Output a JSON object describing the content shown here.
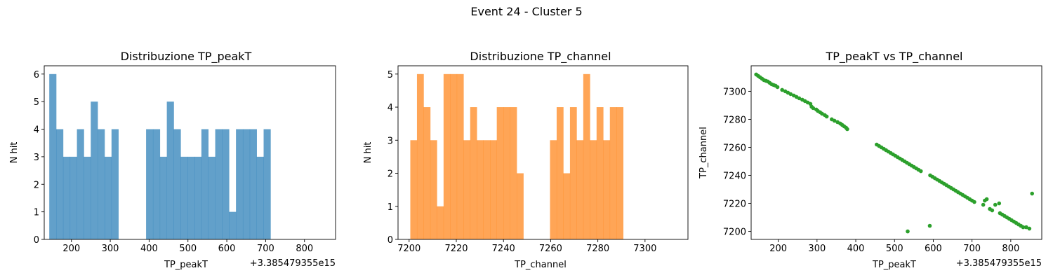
{
  "suptitle": "Event 24 - Cluster 5",
  "colors": {
    "hist1": "#1f77b4",
    "hist2": "#ff7f0e",
    "scatter": "#2ca02c",
    "axis": "#000000"
  },
  "chart_data": [
    {
      "type": "bar",
      "title": "Distribuzione TP_peakT",
      "xlabel": "TP_peakT",
      "ylabel": "N hit",
      "offset_text": "+3.385479355e15",
      "xlim": [
        130,
        880
      ],
      "ylim": [
        0,
        6.3
      ],
      "xticks": [
        200,
        300,
        400,
        500,
        600,
        700,
        800
      ],
      "yticks": [
        0,
        1,
        2,
        3,
        4,
        5,
        6
      ],
      "bin_start": 143,
      "bin_width": 17.8,
      "values": [
        6,
        4,
        3,
        3,
        4,
        3,
        5,
        4,
        3,
        4,
        0,
        0,
        0,
        0,
        4,
        4,
        3,
        5,
        4,
        3,
        3,
        3,
        4,
        3,
        4,
        4,
        1,
        4,
        4,
        4,
        3,
        4
      ]
    },
    {
      "type": "bar",
      "title": "Distribuzione TP_channel",
      "xlabel": "TP_channel",
      "ylabel": "N hit",
      "xlim": [
        7195.3,
        7318.2
      ],
      "ylim": [
        0,
        5.25
      ],
      "xticks": [
        7200,
        7220,
        7240,
        7260,
        7280,
        7300
      ],
      "yticks": [
        0,
        1,
        2,
        3,
        4,
        5
      ],
      "bin_start": 7200.5,
      "bin_width": 2.82,
      "values": [
        3,
        5,
        4,
        3,
        1,
        5,
        5,
        5,
        3,
        4,
        3,
        3,
        3,
        4,
        4,
        4,
        2,
        0,
        0,
        0,
        0,
        3,
        4,
        2,
        4,
        3,
        5,
        3,
        4,
        3,
        4,
        4
      ]
    },
    {
      "type": "scatter",
      "title": "TP_peakT vs TP_channel",
      "xlabel": "TP_peakT",
      "ylabel": "TP_channel",
      "offset_text": "+3.385479355e15",
      "xlim": [
        130,
        880
      ],
      "ylim": [
        7194.3,
        7318.2
      ],
      "xticks": [
        200,
        300,
        400,
        500,
        600,
        700,
        800
      ],
      "yticks": [
        7200,
        7220,
        7240,
        7260,
        7280,
        7300
      ],
      "points": [
        [
          143,
          7312
        ],
        [
          148,
          7311
        ],
        [
          153,
          7310
        ],
        [
          158,
          7309
        ],
        [
          163,
          7308
        ],
        [
          168,
          7307.5
        ],
        [
          173,
          7307
        ],
        [
          178,
          7306
        ],
        [
          183,
          7305
        ],
        [
          188,
          7304.5
        ],
        [
          193,
          7304
        ],
        [
          198,
          7303
        ],
        [
          210,
          7301
        ],
        [
          218,
          7300
        ],
        [
          225,
          7299
        ],
        [
          232,
          7298
        ],
        [
          240,
          7297
        ],
        [
          247,
          7296
        ],
        [
          254,
          7295
        ],
        [
          262,
          7294
        ],
        [
          269,
          7293
        ],
        [
          276,
          7292
        ],
        [
          283,
          7291
        ],
        [
          286,
          7289
        ],
        [
          290,
          7288
        ],
        [
          298,
          7287
        ],
        [
          302,
          7286
        ],
        [
          308,
          7285
        ],
        [
          313,
          7284
        ],
        [
          320,
          7283
        ],
        [
          325,
          7282
        ],
        [
          338,
          7280
        ],
        [
          345,
          7279
        ],
        [
          353,
          7278
        ],
        [
          360,
          7277
        ],
        [
          365,
          7276
        ],
        [
          370,
          7275
        ],
        [
          375,
          7274
        ],
        [
          378,
          7273
        ],
        [
          454,
          7262
        ],
        [
          460,
          7261
        ],
        [
          466,
          7260
        ],
        [
          472,
          7259
        ],
        [
          478,
          7258
        ],
        [
          484,
          7257
        ],
        [
          490,
          7256
        ],
        [
          496,
          7255
        ],
        [
          502,
          7254
        ],
        [
          508,
          7253
        ],
        [
          514,
          7252
        ],
        [
          520,
          7251
        ],
        [
          526,
          7250
        ],
        [
          532,
          7249
        ],
        [
          538,
          7248
        ],
        [
          544,
          7247
        ],
        [
          550,
          7246
        ],
        [
          556,
          7245
        ],
        [
          562,
          7244
        ],
        [
          568,
          7243
        ],
        [
          592,
          7240
        ],
        [
          598,
          7239
        ],
        [
          604,
          7238
        ],
        [
          610,
          7237
        ],
        [
          616,
          7236
        ],
        [
          622,
          7235
        ],
        [
          628,
          7234
        ],
        [
          634,
          7233
        ],
        [
          640,
          7232
        ],
        [
          646,
          7231
        ],
        [
          652,
          7230
        ],
        [
          658,
          7229
        ],
        [
          664,
          7228
        ],
        [
          670,
          7227
        ],
        [
          676,
          7226
        ],
        [
          682,
          7225
        ],
        [
          688,
          7224
        ],
        [
          694,
          7223
        ],
        [
          700,
          7222
        ],
        [
          706,
          7221
        ],
        [
          729,
          7219
        ],
        [
          733,
          7222
        ],
        [
          738,
          7223
        ],
        [
          746,
          7216
        ],
        [
          752,
          7215
        ],
        [
          760,
          7219
        ],
        [
          770,
          7220
        ],
        [
          772,
          7213
        ],
        [
          778,
          7212
        ],
        [
          784,
          7211
        ],
        [
          790,
          7210
        ],
        [
          796,
          7209
        ],
        [
          802,
          7208
        ],
        [
          808,
          7207
        ],
        [
          814,
          7206
        ],
        [
          820,
          7205
        ],
        [
          826,
          7204
        ],
        [
          832,
          7203
        ],
        [
          840,
          7203
        ],
        [
          848,
          7202
        ],
        [
          855,
          7227
        ],
        [
          534,
          7200
        ],
        [
          591,
          7204
        ]
      ]
    }
  ]
}
